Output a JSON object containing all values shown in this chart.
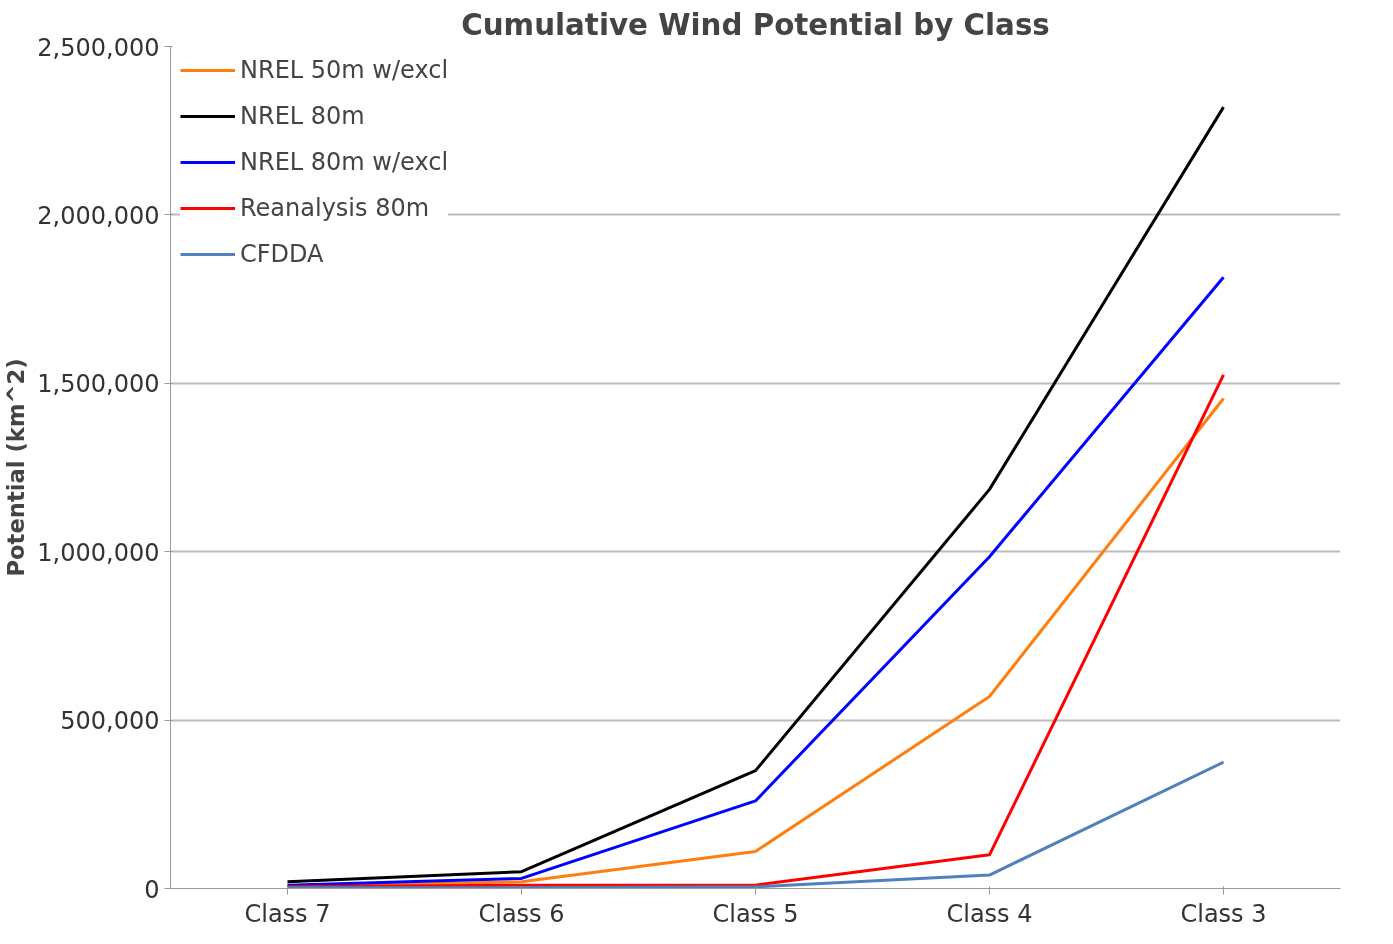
{
  "chart_data": {
    "type": "line",
    "title": "Cumulative Wind Potential by Class",
    "ylabel": "Potential (km^2)",
    "categories": [
      "Class 7",
      "Class 6",
      "Class 5",
      "Class 4",
      "Class 3"
    ],
    "series": [
      {
        "name": "NREL 50m w/excl",
        "color": "#ff7f0e",
        "values": [
          5000,
          20000,
          110000,
          570000,
          1455000
        ]
      },
      {
        "name": "NREL 80m",
        "color": "#000000",
        "values": [
          20000,
          50000,
          350000,
          1185000,
          2320000
        ]
      },
      {
        "name": "NREL 80m w/excl",
        "color": "#0000ff",
        "values": [
          10000,
          30000,
          260000,
          985000,
          1815000
        ]
      },
      {
        "name": "Reanalysis 80m",
        "color": "#ff0000",
        "values": [
          5000,
          10000,
          10000,
          100000,
          1525000
        ]
      },
      {
        "name": "CFDDA",
        "color": "#4f81bd",
        "values": [
          2000,
          2000,
          5000,
          40000,
          375000
        ]
      }
    ],
    "ylim": [
      0,
      2500000
    ],
    "yticks": [
      {
        "value": 0,
        "label": "0"
      },
      {
        "value": 500000,
        "label": "500,000"
      },
      {
        "value": 1000000,
        "label": "1,000,000"
      },
      {
        "value": 1500000,
        "label": "1,500,000"
      },
      {
        "value": 2000000,
        "label": "2,000,000"
      },
      {
        "value": 2500000,
        "label": "2,500,000"
      }
    ],
    "grid": "y",
    "legend": "top left",
    "marker": "none",
    "line_style": "solid"
  }
}
